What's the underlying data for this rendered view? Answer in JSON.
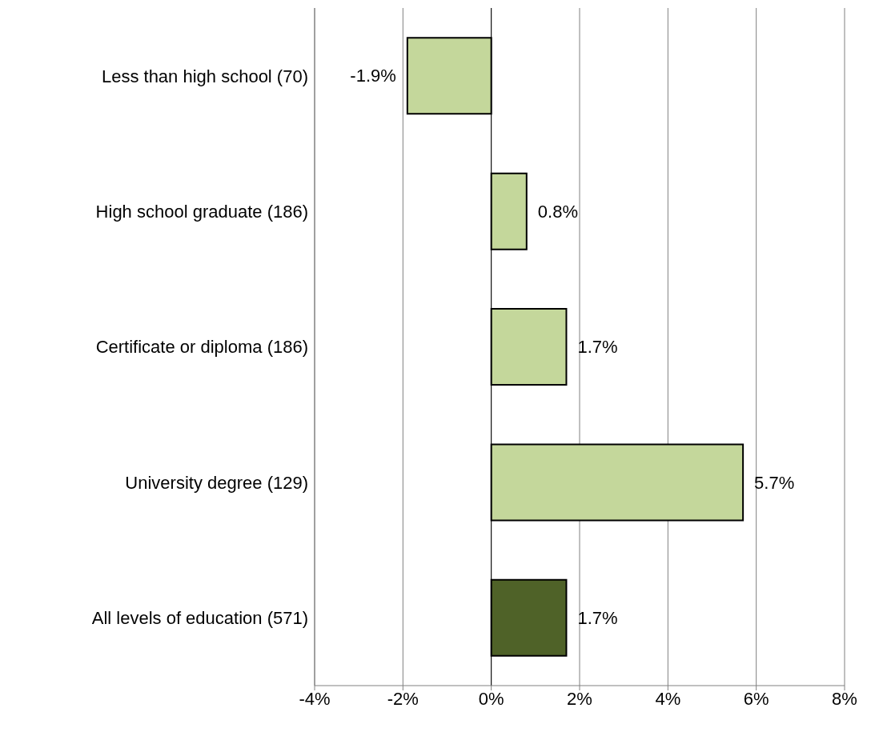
{
  "chart_data": {
    "type": "bar",
    "orientation": "horizontal",
    "categories": [
      "Less than high school (70)",
      "High school graduate (186)",
      "Certificate or diploma (186)",
      "University degree (129)",
      "All levels of education (571)"
    ],
    "values": [
      -1.9,
      0.8,
      1.7,
      5.7,
      1.7
    ],
    "colors": [
      "#c4d79b",
      "#c4d79b",
      "#c4d79b",
      "#c4d79b",
      "#4f6228"
    ],
    "value_labels": [
      "-1.9%",
      "0.8%",
      "1.7%",
      "5.7%",
      "1.7%"
    ],
    "xlim": [
      -4,
      8
    ],
    "xticks": [
      {
        "value": -4,
        "label": "-4%"
      },
      {
        "value": -2,
        "label": "-2%"
      },
      {
        "value": 0,
        "label": "0%"
      },
      {
        "value": 2,
        "label": "2%"
      },
      {
        "value": 4,
        "label": "4%"
      },
      {
        "value": 6,
        "label": "6%"
      },
      {
        "value": 8,
        "label": "8%"
      }
    ],
    "grid": "x"
  }
}
